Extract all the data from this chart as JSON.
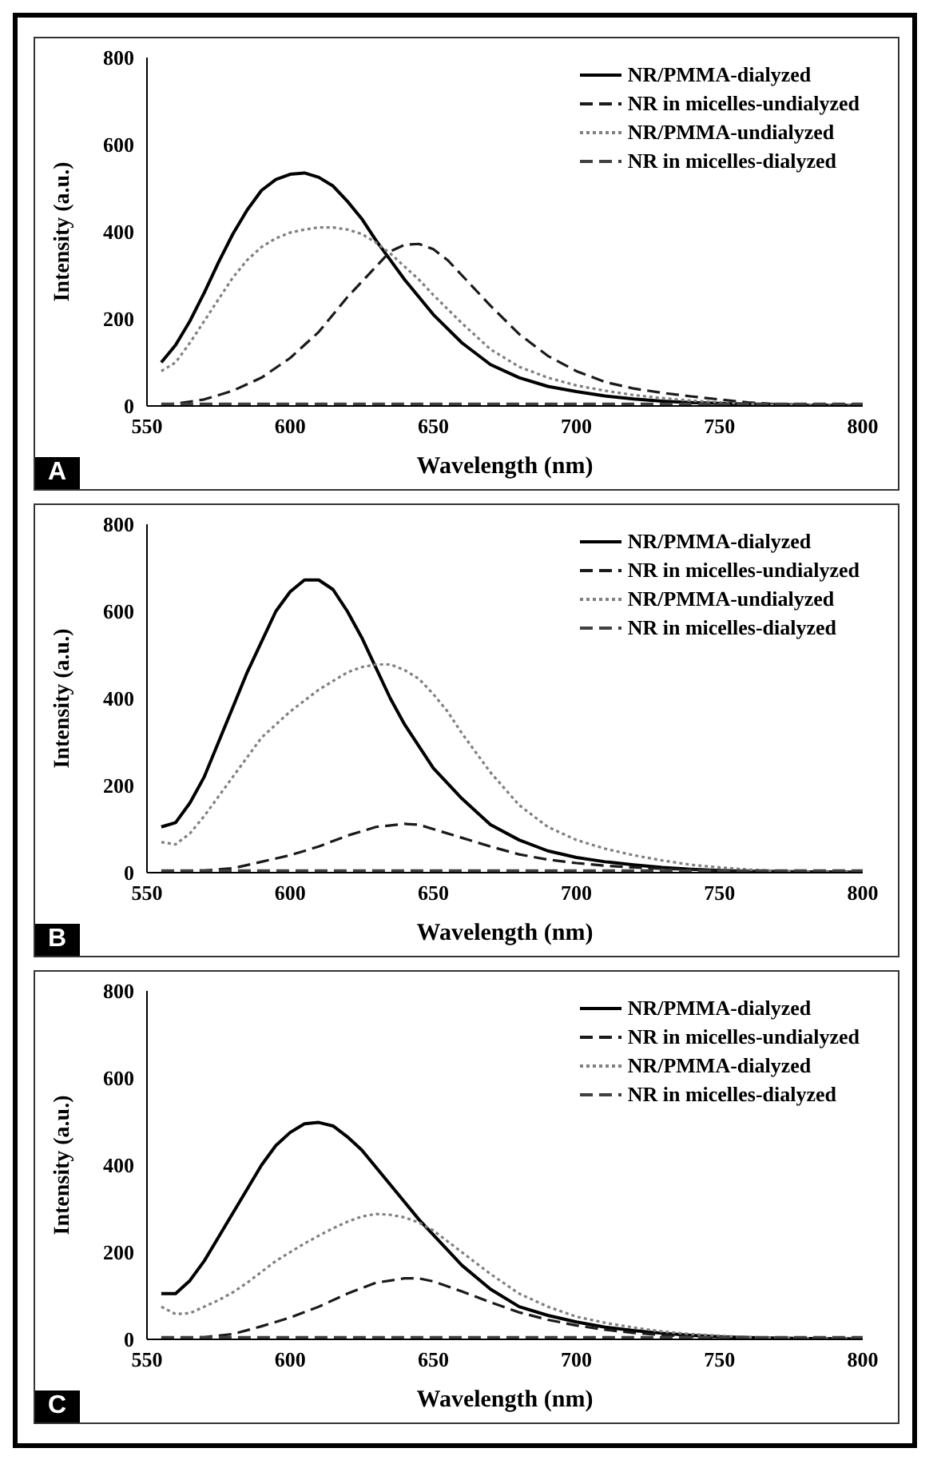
{
  "chart_data": [
    {
      "type": "line",
      "xlabel": "Wavelength (nm)",
      "ylabel": "Intensity (a.u.)",
      "annotations": [
        "A"
      ],
      "xlim": [
        550,
        800
      ],
      "xticks": [
        550,
        600,
        650,
        700,
        750,
        800
      ],
      "ylim": [
        0,
        800
      ],
      "yticks": [
        0,
        200,
        400,
        600,
        800
      ],
      "legend": "top right",
      "marker": "none",
      "series": [
        {
          "name": "NR/PMMA-dialyzed",
          "color": "#000000",
          "line_style": "solid",
          "x": [
            555,
            560,
            565,
            570,
            575,
            580,
            585,
            590,
            595,
            600,
            605,
            610,
            615,
            620,
            625,
            630,
            635,
            640,
            645,
            650,
            660,
            670,
            680,
            690,
            700,
            710,
            720,
            730,
            740,
            750,
            760,
            770,
            780,
            790,
            800
          ],
          "values": [
            100,
            140,
            195,
            260,
            330,
            395,
            450,
            495,
            520,
            532,
            535,
            525,
            505,
            470,
            430,
            380,
            335,
            290,
            250,
            210,
            145,
            95,
            65,
            45,
            33,
            23,
            16,
            11,
            8,
            6,
            4,
            3,
            2,
            2,
            1
          ]
        },
        {
          "name": "NR in micelles-undialyzed",
          "color": "#1a1a1a",
          "line_style": "dashed",
          "x": [
            555,
            560,
            570,
            580,
            590,
            600,
            610,
            620,
            630,
            635,
            640,
            645,
            650,
            655,
            660,
            670,
            680,
            690,
            700,
            710,
            720,
            730,
            740,
            750,
            760,
            770,
            780,
            790,
            800
          ],
          "values": [
            2,
            5,
            15,
            35,
            65,
            110,
            170,
            250,
            320,
            355,
            370,
            372,
            360,
            335,
            300,
            230,
            165,
            115,
            80,
            55,
            40,
            30,
            22,
            15,
            8,
            4,
            2,
            1,
            0
          ]
        },
        {
          "name": "NR/PMMA-undialyzed",
          "color": "#808080",
          "line_style": "dotted",
          "x": [
            555,
            560,
            565,
            570,
            575,
            580,
            585,
            590,
            595,
            600,
            605,
            610,
            615,
            620,
            625,
            630,
            635,
            640,
            645,
            650,
            660,
            670,
            680,
            690,
            700,
            710,
            720,
            730,
            740,
            750,
            760,
            770,
            780,
            790,
            800
          ],
          "values": [
            80,
            100,
            145,
            195,
            245,
            295,
            335,
            365,
            385,
            398,
            405,
            410,
            410,
            405,
            395,
            375,
            350,
            320,
            290,
            255,
            190,
            130,
            90,
            65,
            47,
            35,
            25,
            18,
            12,
            8,
            5,
            3,
            2,
            2,
            1
          ]
        },
        {
          "name": "NR in micelles-dialyzed",
          "color": "#404040",
          "line_style": "dashed",
          "x": [
            555,
            600,
            650,
            700,
            750,
            800
          ],
          "values": [
            5,
            5,
            5,
            5,
            5,
            5
          ]
        }
      ]
    },
    {
      "type": "line",
      "xlabel": "Wavelength (nm)",
      "ylabel": "Intensity (a.u.)",
      "annotations": [
        "B"
      ],
      "xlim": [
        550,
        800
      ],
      "xticks": [
        550,
        600,
        650,
        700,
        750,
        800
      ],
      "ylim": [
        0,
        800
      ],
      "yticks": [
        0,
        200,
        400,
        600,
        800
      ],
      "legend": "top right",
      "marker": "none",
      "series": [
        {
          "name": "NR/PMMA-dialyzed",
          "color": "#000000",
          "line_style": "solid",
          "x": [
            555,
            560,
            565,
            570,
            575,
            580,
            585,
            590,
            595,
            600,
            605,
            610,
            615,
            620,
            625,
            630,
            635,
            640,
            645,
            650,
            660,
            670,
            680,
            690,
            700,
            710,
            720,
            730,
            740,
            750,
            760,
            780,
            800
          ],
          "values": [
            105,
            115,
            160,
            220,
            300,
            380,
            460,
            530,
            600,
            645,
            672,
            672,
            650,
            600,
            540,
            470,
            400,
            340,
            290,
            240,
            170,
            110,
            75,
            50,
            35,
            25,
            18,
            12,
            8,
            5,
            3,
            2,
            1
          ]
        },
        {
          "name": "NR in micelles-undialyzed",
          "color": "#1a1a1a",
          "line_style": "dashed",
          "x": [
            555,
            570,
            580,
            590,
            600,
            610,
            620,
            630,
            640,
            645,
            650,
            660,
            670,
            680,
            690,
            700,
            710,
            720,
            730,
            740,
            750,
            770,
            800
          ],
          "values": [
            2,
            5,
            10,
            25,
            40,
            60,
            85,
            105,
            112,
            110,
            100,
            80,
            60,
            42,
            30,
            22,
            16,
            12,
            9,
            7,
            5,
            3,
            1
          ]
        },
        {
          "name": "NR/PMMA-undialyzed",
          "color": "#808080",
          "line_style": "dotted",
          "x": [
            555,
            560,
            565,
            570,
            575,
            580,
            585,
            590,
            595,
            600,
            605,
            610,
            615,
            620,
            625,
            630,
            635,
            640,
            645,
            650,
            655,
            660,
            670,
            680,
            690,
            700,
            710,
            720,
            730,
            740,
            750,
            760,
            770,
            780,
            800
          ],
          "values": [
            70,
            65,
            90,
            130,
            175,
            220,
            265,
            310,
            340,
            370,
            395,
            420,
            440,
            460,
            472,
            478,
            478,
            465,
            445,
            410,
            370,
            320,
            230,
            155,
            105,
            75,
            55,
            40,
            28,
            18,
            12,
            7,
            4,
            2,
            1
          ]
        },
        {
          "name": "NR in micelles-dialyzed",
          "color": "#404040",
          "line_style": "dashed",
          "x": [
            555,
            600,
            650,
            700,
            750,
            800
          ],
          "values": [
            5,
            5,
            5,
            5,
            5,
            5
          ]
        }
      ]
    },
    {
      "type": "line",
      "xlabel": "Wavelength (nm)",
      "ylabel": "Intensity (a.u.)",
      "annotations": [
        "C"
      ],
      "xlim": [
        550,
        800
      ],
      "xticks": [
        550,
        600,
        650,
        700,
        750,
        800
      ],
      "ylim": [
        0,
        800
      ],
      "yticks": [
        0,
        200,
        400,
        600,
        800
      ],
      "legend": "top right",
      "marker": "none",
      "series": [
        {
          "name": "NR/PMMA-dialyzed",
          "color": "#000000",
          "line_style": "solid",
          "x": [
            555,
            560,
            565,
            570,
            575,
            580,
            585,
            590,
            595,
            600,
            605,
            610,
            615,
            620,
            625,
            630,
            635,
            640,
            645,
            650,
            660,
            670,
            680,
            690,
            700,
            710,
            720,
            730,
            740,
            750,
            760,
            780,
            800
          ],
          "values": [
            105,
            105,
            135,
            180,
            235,
            290,
            345,
            400,
            445,
            475,
            495,
            498,
            490,
            465,
            435,
            395,
            355,
            315,
            275,
            240,
            170,
            115,
            75,
            55,
            40,
            28,
            20,
            14,
            9,
            6,
            4,
            2,
            1
          ]
        },
        {
          "name": "NR in micelles-undialyzed",
          "color": "#1a1a1a",
          "line_style": "dashed",
          "x": [
            555,
            570,
            580,
            590,
            600,
            610,
            620,
            630,
            640,
            645,
            650,
            660,
            670,
            680,
            690,
            700,
            710,
            720,
            730,
            740,
            750,
            770,
            800
          ],
          "values": [
            2,
            5,
            12,
            30,
            50,
            75,
            105,
            130,
            140,
            140,
            133,
            110,
            85,
            62,
            45,
            32,
            22,
            15,
            10,
            6,
            4,
            2,
            1
          ]
        },
        {
          "name": "NR/PMMA-dialyzed",
          "color": "#808080",
          "line_style": "dotted",
          "x": [
            555,
            560,
            565,
            570,
            575,
            580,
            585,
            590,
            595,
            600,
            605,
            610,
            615,
            620,
            625,
            630,
            635,
            640,
            645,
            650,
            660,
            670,
            680,
            690,
            700,
            710,
            720,
            730,
            740,
            750,
            760,
            780,
            800
          ],
          "values": [
            75,
            58,
            60,
            75,
            90,
            108,
            130,
            155,
            180,
            200,
            220,
            238,
            255,
            270,
            282,
            288,
            286,
            280,
            268,
            250,
            200,
            150,
            105,
            75,
            52,
            38,
            27,
            18,
            12,
            8,
            5,
            2,
            1
          ]
        },
        {
          "name": "NR in micelles-dialyzed",
          "color": "#404040",
          "line_style": "dashed",
          "x": [
            555,
            600,
            650,
            700,
            750,
            800
          ],
          "values": [
            5,
            5,
            5,
            5,
            5,
            5
          ]
        }
      ]
    }
  ]
}
